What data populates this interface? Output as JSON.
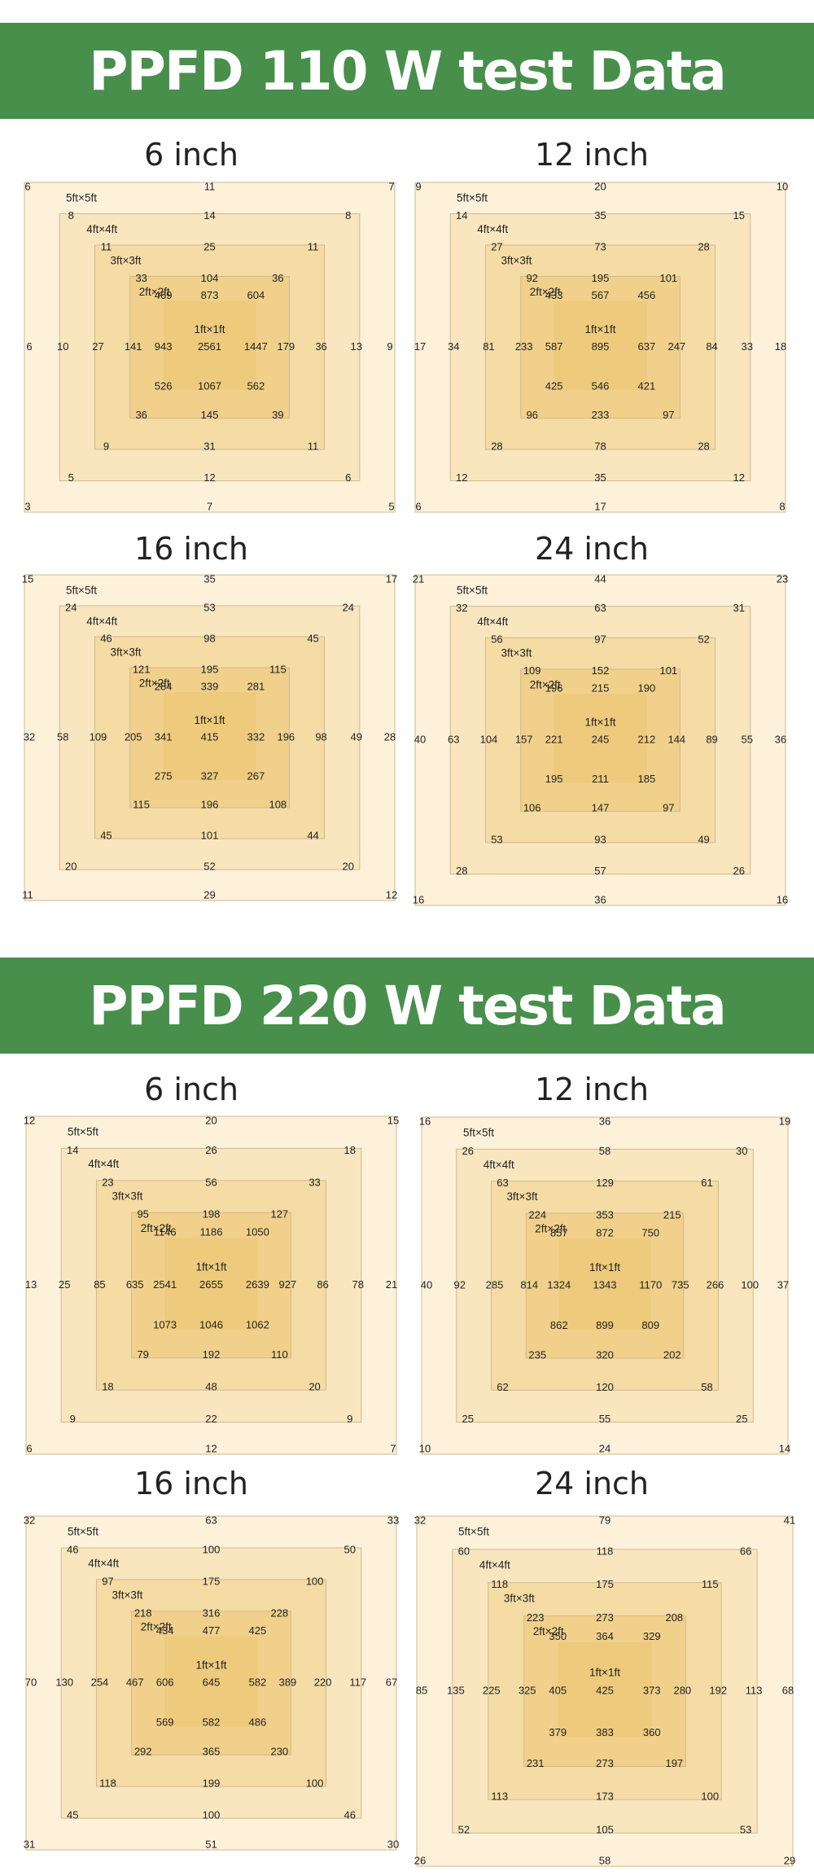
{
  "sections": [
    {
      "title": "PPFD 110 W test Data",
      "label_color": "#222222"
    },
    {
      "title": "PPFD 220 W test Data",
      "label_color": "#e06a1c"
    }
  ],
  "colors": {
    "banner": "#478f4b",
    "zone_5ft": "#fdf1da",
    "zone_4ft": "#f9e6bf",
    "zone_3ft": "#f5dba4",
    "zone_2ft": "#f0d08a",
    "zone_1ft": "#ecc877",
    "border": "#cfb98e"
  },
  "chart_data": [
    {
      "type": "heatmap",
      "section": "PPFD 110 W test Data",
      "title": "6 inch",
      "labels": [
        "5ft×5ft",
        "4ft×4ft",
        "3ft×3ft",
        "2ft×2ft",
        "1ft×1ft"
      ],
      "rings": [
        {
          "tl": 6,
          "t": 11,
          "tr": 7,
          "l": 6,
          "r": 9,
          "bl": 3,
          "b": 7,
          "br": 5
        },
        {
          "tl": 8,
          "t": 14,
          "tr": 8,
          "l": 10,
          "r": 13,
          "bl": 5,
          "b": 12,
          "br": 6
        },
        {
          "tl": 11,
          "t": 25,
          "tr": 11,
          "l": 27,
          "r": 36,
          "bl": 9,
          "b": 31,
          "br": 11
        },
        {
          "tl": 33,
          "t": 104,
          "tr": 36,
          "l": 141,
          "r": 179,
          "bl": 36,
          "b": 145,
          "br": 39
        },
        {
          "tl": 469,
          "t": 873,
          "tr": 604,
          "l": 943,
          "r": 1447,
          "bl": 526,
          "b": 1067,
          "br": 562
        }
      ],
      "center": 2561
    },
    {
      "type": "heatmap",
      "section": "PPFD 110 W test Data",
      "title": "12 inch",
      "labels": [
        "5ft×5ft",
        "4ft×4ft",
        "3ft×3ft",
        "2ft×2ft",
        "1ft×1ft"
      ],
      "rings": [
        {
          "tl": 9,
          "t": 20,
          "tr": 10,
          "l": 17,
          "r": 18,
          "bl": 6,
          "b": 17,
          "br": 8
        },
        {
          "tl": 14,
          "t": 35,
          "tr": 15,
          "l": 34,
          "r": 33,
          "bl": 12,
          "b": 35,
          "br": 12
        },
        {
          "tl": 27,
          "t": 73,
          "tr": 28,
          "l": 81,
          "r": 84,
          "bl": 28,
          "b": 78,
          "br": 28
        },
        {
          "tl": 92,
          "t": 195,
          "tr": 101,
          "l": 233,
          "r": 247,
          "bl": 96,
          "b": 233,
          "br": 97
        },
        {
          "tl": 433,
          "t": 567,
          "tr": 456,
          "l": 587,
          "r": 637,
          "bl": 425,
          "b": 546,
          "br": 421
        }
      ],
      "center": 895
    },
    {
      "type": "heatmap",
      "section": "PPFD 110 W test Data",
      "title": "16 inch",
      "labels": [
        "5ft×5ft",
        "4ft×4ft",
        "3ft×3ft",
        "2ft×2ft",
        "1ft×1ft"
      ],
      "rings": [
        {
          "tl": 15,
          "t": 35,
          "tr": 17,
          "l": 32,
          "r": 28,
          "bl": 11,
          "b": 29,
          "br": 12
        },
        {
          "tl": 24,
          "t": 53,
          "tr": 24,
          "l": 58,
          "r": 49,
          "bl": 20,
          "b": 52,
          "br": 20
        },
        {
          "tl": 46,
          "t": 98,
          "tr": 45,
          "l": 109,
          "r": 98,
          "bl": 45,
          "b": 101,
          "br": 44
        },
        {
          "tl": 121,
          "t": 195,
          "tr": 115,
          "l": 205,
          "r": 196,
          "bl": 115,
          "b": 196,
          "br": 108
        },
        {
          "tl": 284,
          "t": 339,
          "tr": 281,
          "l": 341,
          "r": 332,
          "bl": 275,
          "b": 327,
          "br": 267
        }
      ],
      "center": 415
    },
    {
      "type": "heatmap",
      "section": "PPFD 110 W test Data",
      "title": "24 inch",
      "labels": [
        "5ft×5ft",
        "4ft×4ft",
        "3ft×3ft",
        "2ft×2ft",
        "1ft×1ft"
      ],
      "rings": [
        {
          "tl": 21,
          "t": 44,
          "tr": 23,
          "l": 40,
          "r": 36,
          "bl": 16,
          "b": 36,
          "br": 16
        },
        {
          "tl": 32,
          "t": 63,
          "tr": 31,
          "l": 63,
          "r": 55,
          "bl": 28,
          "b": 57,
          "br": 26
        },
        {
          "tl": 56,
          "t": 97,
          "tr": 52,
          "l": 104,
          "r": 89,
          "bl": 53,
          "b": 93,
          "br": 49
        },
        {
          "tl": 109,
          "t": 152,
          "tr": 101,
          "l": 157,
          "r": 144,
          "bl": 106,
          "b": 147,
          "br": 97
        },
        {
          "tl": 196,
          "t": 215,
          "tr": 190,
          "l": 221,
          "r": 212,
          "bl": 195,
          "b": 211,
          "br": 185
        }
      ],
      "center": 245
    },
    {
      "type": "heatmap",
      "section": "PPFD 220 W test Data",
      "title": "6 inch",
      "labels": [
        "5ft×5ft",
        "4ft×4ft",
        "3ft×3ft",
        "2ft×2ft",
        "1ft×1ft"
      ],
      "rings": [
        {
          "tl": 12,
          "t": 20,
          "tr": 15,
          "l": 13,
          "r": 21,
          "bl": 6,
          "b": 12,
          "br": 7
        },
        {
          "tl": 14,
          "t": 26,
          "tr": 18,
          "l": 25,
          "r": 78,
          "bl": 9,
          "b": 22,
          "br": 9
        },
        {
          "tl": 23,
          "t": 56,
          "tr": 33,
          "l": 85,
          "r": 86,
          "bl": 18,
          "b": 48,
          "br": 20
        },
        {
          "tl": 95,
          "t": 198,
          "tr": 127,
          "l": 635,
          "r": 927,
          "bl": 79,
          "b": 192,
          "br": 110
        },
        {
          "tl": 1146,
          "t": 1186,
          "tr": 1050,
          "l": 2541,
          "r": 2639,
          "bl": 1073,
          "b": 1046,
          "br": 1062
        }
      ],
      "center": 2655
    },
    {
      "type": "heatmap",
      "section": "PPFD 220 W test Data",
      "title": "12 inch",
      "labels": [
        "5ft×5ft",
        "4ft×4ft",
        "3ft×3ft",
        "2ft×2ft",
        "1ft×1ft"
      ],
      "rings": [
        {
          "tl": 16,
          "t": 36,
          "tr": 19,
          "l": 40,
          "r": 37,
          "bl": 10,
          "b": 24,
          "br": 14
        },
        {
          "tl": 26,
          "t": 58,
          "tr": 30,
          "l": 92,
          "r": 100,
          "bl": 25,
          "b": 55,
          "br": 25
        },
        {
          "tl": 63,
          "t": 129,
          "tr": 61,
          "l": 285,
          "r": 266,
          "bl": 62,
          "b": 120,
          "br": 58
        },
        {
          "tl": 224,
          "t": 353,
          "tr": 215,
          "l": 814,
          "r": 735,
          "bl": 235,
          "b": 320,
          "br": 202
        },
        {
          "tl": 857,
          "t": 872,
          "tr": 750,
          "l": 1324,
          "r": 1170,
          "bl": 862,
          "b": 899,
          "br": 809
        }
      ],
      "center": 1343
    },
    {
      "type": "heatmap",
      "section": "PPFD 220 W test Data",
      "title": "16 inch",
      "labels": [
        "5ft×5ft",
        "4ft×4ft",
        "3ft×3ft",
        "2ft×2ft",
        "1ft×1ft"
      ],
      "rings": [
        {
          "tl": 32,
          "t": 63,
          "tr": 33,
          "l": 70,
          "r": 67,
          "bl": 31,
          "b": 51,
          "br": 30
        },
        {
          "tl": 46,
          "t": 100,
          "tr": 50,
          "l": 130,
          "r": 117,
          "bl": 45,
          "b": 100,
          "br": 46
        },
        {
          "tl": 97,
          "t": 175,
          "tr": 100,
          "l": 254,
          "r": 220,
          "bl": 118,
          "b": 199,
          "br": 100
        },
        {
          "tl": 218,
          "t": 316,
          "tr": 228,
          "l": 467,
          "r": 389,
          "bl": 292,
          "b": 365,
          "br": 230
        },
        {
          "tl": 434,
          "t": 477,
          "tr": 425,
          "l": 606,
          "r": 582,
          "bl": 569,
          "b": 582,
          "br": 486
        }
      ],
      "center": 645
    },
    {
      "type": "heatmap",
      "section": "PPFD 220 W test Data",
      "title": "24 inch",
      "labels": [
        "5ft×5ft",
        "4ft×4ft",
        "3ft×3ft",
        "2ft×2ft",
        "1ft×1ft"
      ],
      "rings": [
        {
          "tl": 32,
          "t": 79,
          "tr": 41,
          "l": 85,
          "r": 68,
          "bl": 26,
          "b": 58,
          "br": 29
        },
        {
          "tl": 60,
          "t": 118,
          "tr": 66,
          "l": 135,
          "r": 113,
          "bl": 52,
          "b": 105,
          "br": 53
        },
        {
          "tl": 118,
          "t": 175,
          "tr": 115,
          "l": 225,
          "r": 192,
          "bl": 113,
          "b": 173,
          "br": 100
        },
        {
          "tl": 223,
          "t": 273,
          "tr": 208,
          "l": 325,
          "r": 280,
          "bl": 231,
          "b": 273,
          "br": 197
        },
        {
          "tl": 350,
          "t": 364,
          "tr": 329,
          "l": 405,
          "r": 373,
          "bl": 379,
          "b": 383,
          "br": 360
        }
      ],
      "center": 425
    }
  ]
}
